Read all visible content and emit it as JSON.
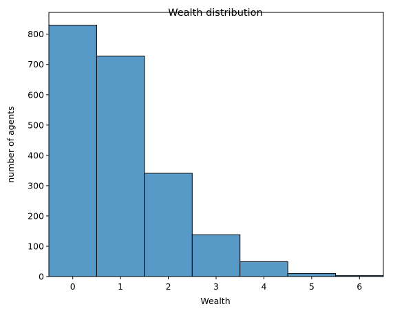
{
  "chart_data": {
    "type": "bar",
    "title": "Wealth distribution",
    "xlabel": "Wealth",
    "ylabel": "number of agents",
    "categories": [
      0,
      1,
      2,
      3,
      4,
      5,
      6
    ],
    "values": [
      830,
      728,
      341,
      138,
      49,
      10,
      3
    ],
    "xlim": [
      -0.5,
      6.5
    ],
    "ylim": [
      0,
      872
    ],
    "xticks": [
      0,
      1,
      2,
      3,
      4,
      5,
      6
    ],
    "yticks": [
      0,
      100,
      200,
      300,
      400,
      500,
      600,
      700,
      800
    ],
    "grid": false,
    "bar_color": "#5799c7",
    "edge_color": "#000000"
  }
}
